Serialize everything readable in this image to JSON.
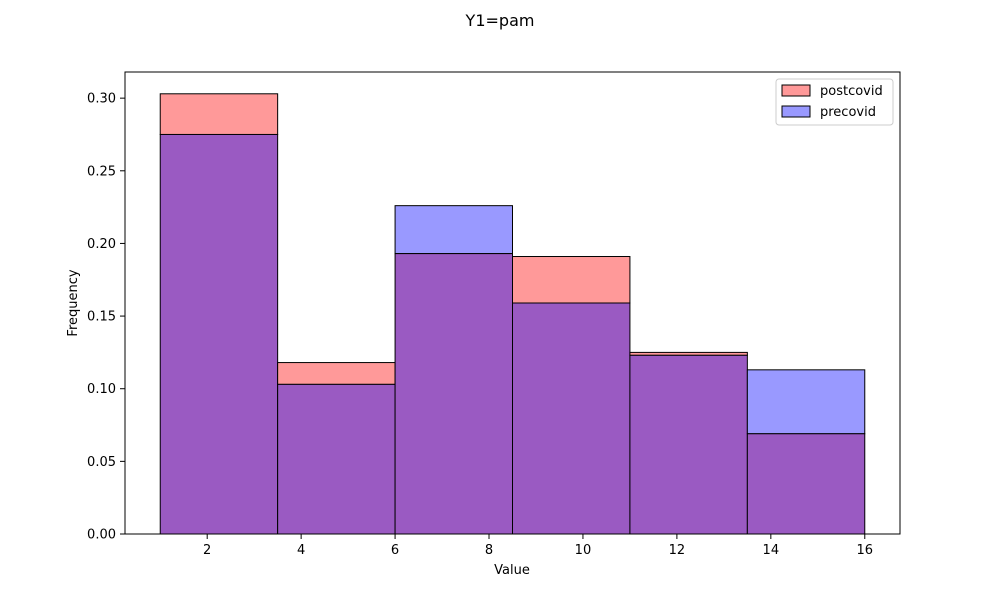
{
  "chart_data": {
    "type": "bar",
    "title": "Y1=pam",
    "xlabel": "Value",
    "ylabel": "Frequency",
    "xlim": [
      0.25,
      16.75
    ],
    "ylim": [
      0,
      0.318
    ],
    "xticks": [
      2,
      4,
      6,
      8,
      10,
      12,
      14,
      16
    ],
    "yticks": [
      0.0,
      0.05,
      0.1,
      0.15,
      0.2,
      0.25,
      0.3
    ],
    "ytick_labels": [
      "0.00",
      "0.05",
      "0.10",
      "0.15",
      "0.20",
      "0.25",
      "0.30"
    ],
    "bin_edges": [
      1,
      3.5,
      6,
      8.5,
      11,
      13.5,
      16
    ],
    "series": [
      {
        "name": "postcovid",
        "color": "#ff9999",
        "values": [
          0.303,
          0.118,
          0.193,
          0.191,
          0.125,
          0.069
        ]
      },
      {
        "name": "precovid",
        "color": "#9999ff",
        "values": [
          0.275,
          0.103,
          0.226,
          0.159,
          0.123,
          0.113
        ]
      }
    ],
    "overlap_color": "#9a5ac2",
    "legend_position": "upper right",
    "grid": false
  }
}
